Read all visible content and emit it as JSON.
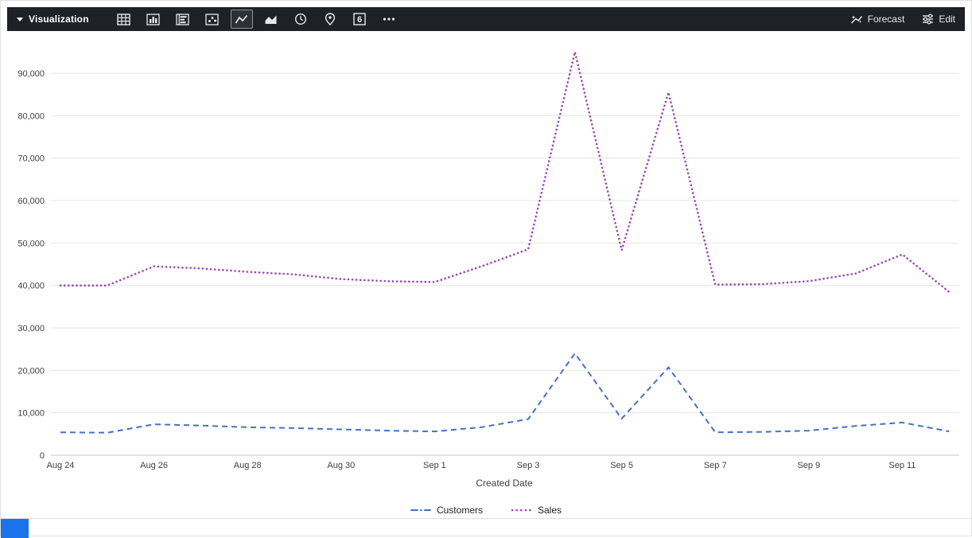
{
  "header": {
    "menu_label": "Visualization",
    "icons": [
      {
        "name": "table-icon"
      },
      {
        "name": "column-chart-icon"
      },
      {
        "name": "bar-chart-icon"
      },
      {
        "name": "scatter-icon"
      },
      {
        "name": "line-chart-icon",
        "selected": true
      },
      {
        "name": "area-chart-icon"
      },
      {
        "name": "clock-icon"
      },
      {
        "name": "map-pin-icon"
      },
      {
        "name": "single-value-icon",
        "glyph": "6"
      },
      {
        "name": "more-icon"
      }
    ],
    "forecast_label": "Forecast",
    "edit_label": "Edit"
  },
  "colors": {
    "footer_accent": "#1a73e8",
    "customers_line": "#4472c4",
    "sales_line": "#9c44b8"
  },
  "chart_data": {
    "type": "line",
    "x": [
      "Aug 24",
      "Aug 25",
      "Aug 26",
      "Aug 27",
      "Aug 28",
      "Aug 29",
      "Aug 30",
      "Aug 31",
      "Sep 1",
      "Sep 2",
      "Sep 3",
      "Sep 4",
      "Sep 5",
      "Sep 6",
      "Sep 7",
      "Sep 8",
      "Sep 9",
      "Sep 10",
      "Sep 11",
      "Sep 12"
    ],
    "series": [
      {
        "name": "Customers",
        "color": "#4472c4",
        "style": "dashed",
        "values": [
          5400,
          5300,
          7300,
          7000,
          6600,
          6400,
          6100,
          5800,
          5600,
          6600,
          8500,
          24000,
          8600,
          20700,
          5400,
          5500,
          5800,
          6900,
          7700,
          5600
        ]
      },
      {
        "name": "Sales",
        "color": "#9c44b8",
        "style": "dotted",
        "values": [
          40000,
          40000,
          44500,
          44000,
          43200,
          42600,
          41500,
          41000,
          40800,
          44500,
          48500,
          95000,
          48300,
          85500,
          40200,
          40300,
          41000,
          42800,
          47300,
          38500
        ]
      }
    ],
    "title": "",
    "xlabel": "Created Date",
    "ylabel": "",
    "ylim": [
      0,
      95000
    ],
    "yticks": [
      0,
      10000,
      20000,
      30000,
      40000,
      50000,
      60000,
      70000,
      80000,
      90000
    ],
    "xticks": [
      "Aug 24",
      "Aug 26",
      "Aug 28",
      "Aug 30",
      "Sep 1",
      "Sep 3",
      "Sep 5",
      "Sep 7",
      "Sep 9",
      "Sep 11"
    ],
    "grid": true,
    "legend_position": "bottom"
  }
}
